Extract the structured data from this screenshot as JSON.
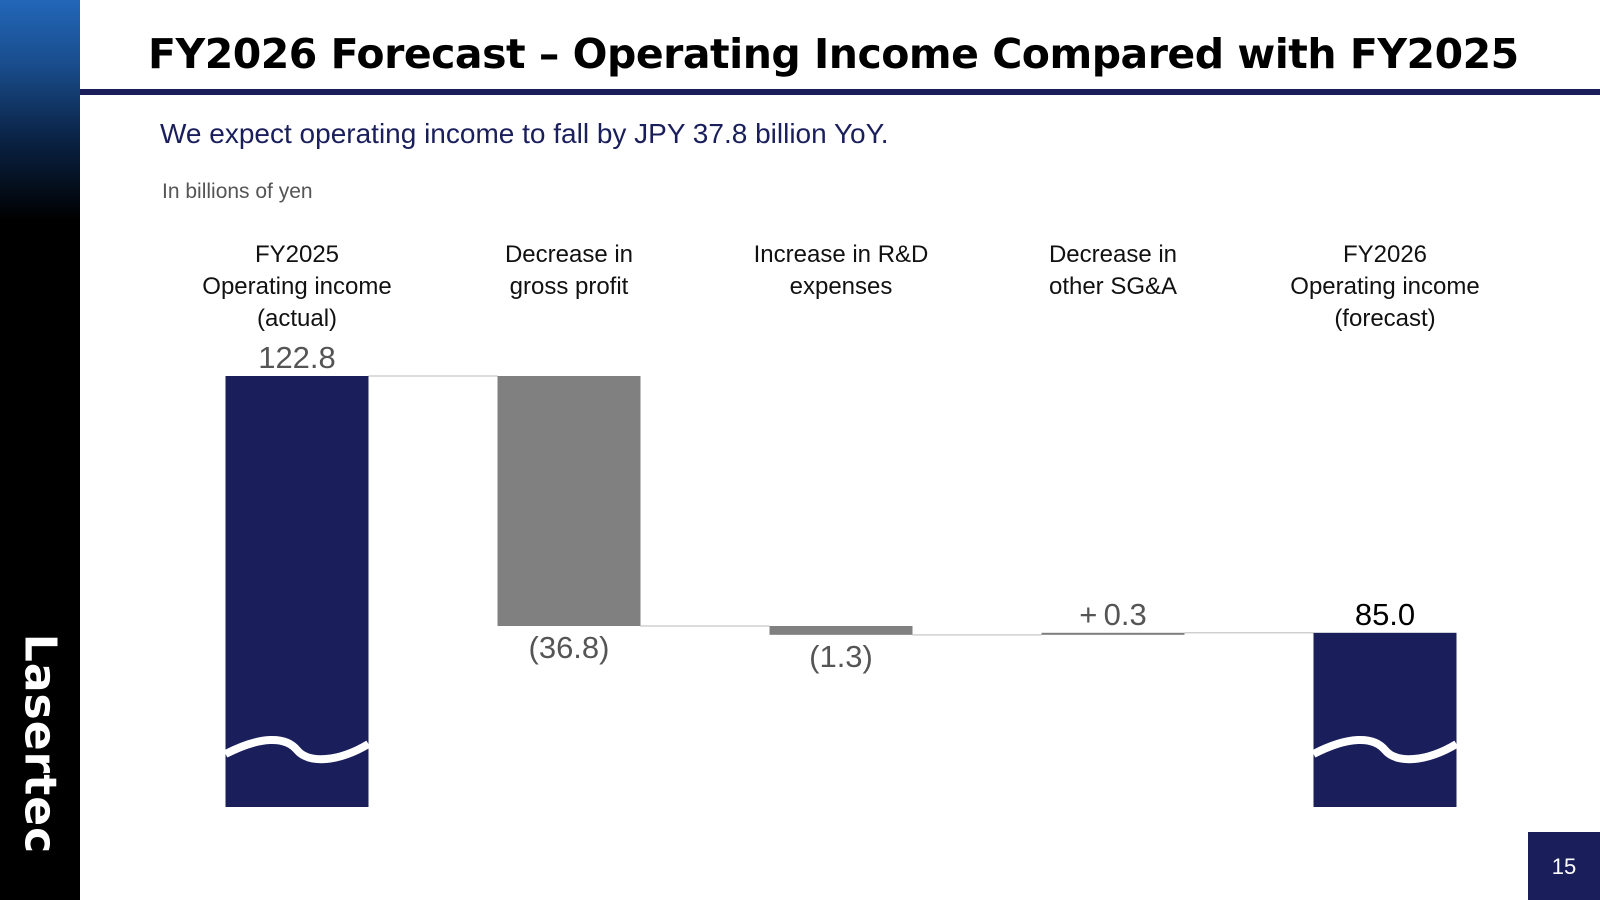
{
  "logo_text": "Lasertec",
  "title": "FY2026 Forecast – Operating Income Compared with FY2025",
  "subtitle": "We expect operating income to fall by JPY 37.8 billion YoY.",
  "unit_label": "In billions of yen",
  "page_number": "15",
  "colors": {
    "navy": "#1a1f5c",
    "gray": "#808080",
    "connector": "#d0d0d0"
  },
  "chart_data": {
    "type": "bar",
    "subtype": "waterfall",
    "unit": "billions of yen",
    "categories": [
      [
        "FY2025",
        "Operating income",
        "(actual)"
      ],
      [
        "Decrease in",
        "gross profit"
      ],
      [
        "Increase in R&D",
        "expenses"
      ],
      [
        "Decrease in",
        "other SG&A"
      ],
      [
        "FY2026",
        "Operating income",
        "(forecast)"
      ]
    ],
    "values": [
      122.8,
      -36.8,
      -1.3,
      0.3,
      85.0
    ],
    "kinds": [
      "total",
      "delta",
      "delta",
      "delta",
      "total"
    ],
    "data_labels": [
      "122.8",
      "(36.8)",
      "(1.3)",
      "+ 0.3",
      "85.0"
    ],
    "axis_break": true
  }
}
